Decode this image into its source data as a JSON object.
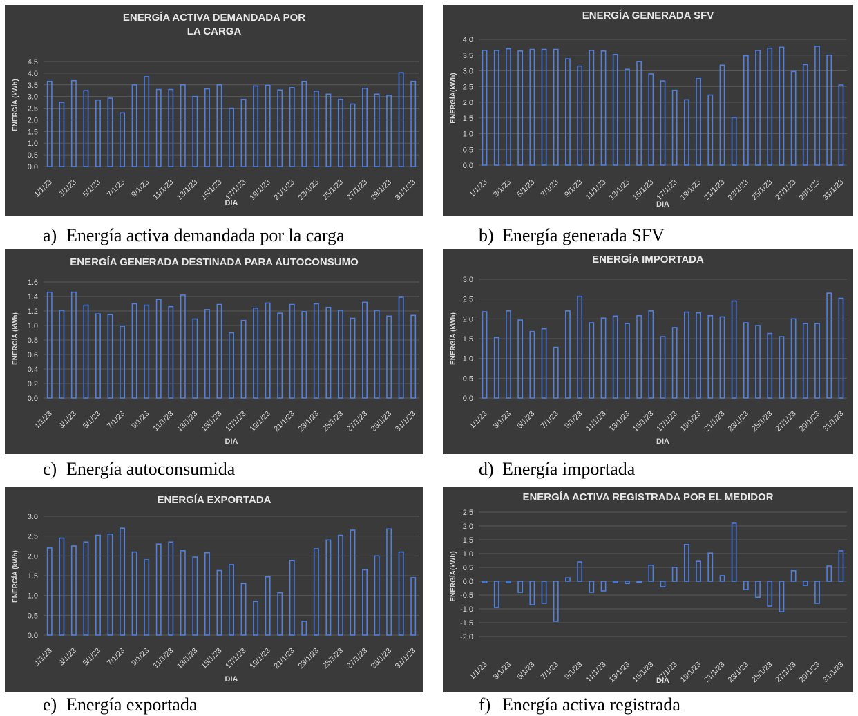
{
  "colors": {
    "background": "#3a3a3a",
    "bar_stroke": "#4f7fe0",
    "grid": "#5a5a5a",
    "text": "#d9d9d9",
    "title": "#e8e8e8"
  },
  "captions": [
    {
      "letter": "a)",
      "text": "Energía activa demandada por la carga"
    },
    {
      "letter": "b)",
      "text": "Energía generada SFV"
    },
    {
      "letter": "c)",
      "text": "Energía autoconsumida"
    },
    {
      "letter": "d)",
      "text": "Energía importada"
    },
    {
      "letter": "e)",
      "text": "Energía exportada"
    },
    {
      "letter": "f)",
      "text": "Energía activa registrada"
    }
  ],
  "chart_data": [
    {
      "type": "bar",
      "title": "ENERGÍA ACTIVA DEMANDADA POR LA CARGA",
      "title_lines": [
        "ENERGÍA ACTIVA DEMANDADA POR",
        "LA CARGA"
      ],
      "xlabel": "DIA",
      "ylabel": "ENERGÍA (kWh)",
      "ylim": [
        0,
        4.5
      ],
      "yticks": [
        "0.0",
        "0.5",
        "1.0",
        "1.5",
        "2.0",
        "2.5",
        "3.0",
        "3.5",
        "4.0",
        "4.5"
      ],
      "grid": true,
      "categories": [
        "1/1/23",
        "2/1/23",
        "3/1/23",
        "4/1/23",
        "5/1/23",
        "6/1/23",
        "7/1/23",
        "8/1/23",
        "9/1/23",
        "10/1/23",
        "11/1/23",
        "12/1/23",
        "13/1/23",
        "14/1/23",
        "15/1/23",
        "16/1/23",
        "17/1/23",
        "18/1/23",
        "19/1/23",
        "20/1/23",
        "21/1/23",
        "22/1/23",
        "23/1/23",
        "24/1/23",
        "25/1/23",
        "26/1/23",
        "27/1/23",
        "28/1/23",
        "29/1/23",
        "30/1/23",
        "31/1/23"
      ],
      "xtick_labels": [
        "1/1/23",
        "3/1/23",
        "5/1/23",
        "7/1/23",
        "9/1/23",
        "11/1/23",
        "13/1/23",
        "15/1/23",
        "17/1/23",
        "19/1/23",
        "21/1/23",
        "23/1/23",
        "25/1/23",
        "27/1/23",
        "29/1/23",
        "31/1/23"
      ],
      "values": [
        3.65,
        2.75,
        3.68,
        3.25,
        2.85,
        2.93,
        2.3,
        3.5,
        3.85,
        3.3,
        3.3,
        3.5,
        3.0,
        3.33,
        3.5,
        2.5,
        2.88,
        3.45,
        3.48,
        3.28,
        3.38,
        3.65,
        3.23,
        3.1,
        2.88,
        2.68,
        3.35,
        3.1,
        3.05,
        4.02,
        3.65
      ]
    },
    {
      "type": "bar",
      "title": "ENERGÍA GENERADA SFV",
      "title_lines": [
        "ENERGÍA GENERADA SFV"
      ],
      "xlabel": "DIA",
      "ylabel": "ENERGÍA(kWh)",
      "ylim": [
        0,
        4.0
      ],
      "yticks": [
        "0.0",
        "0.5",
        "1.0",
        "1.5",
        "2.0",
        "2.5",
        "3.0",
        "3.5",
        "4.0"
      ],
      "grid": true,
      "categories": [
        "1/1/23",
        "2/1/23",
        "3/1/23",
        "4/1/23",
        "5/1/23",
        "6/1/23",
        "7/1/23",
        "8/1/23",
        "9/1/23",
        "10/1/23",
        "11/1/23",
        "12/1/23",
        "13/1/23",
        "14/1/23",
        "15/1/23",
        "16/1/23",
        "17/1/23",
        "18/1/23",
        "19/1/23",
        "20/1/23",
        "21/1/23",
        "22/1/23",
        "23/1/23",
        "24/1/23",
        "25/1/23",
        "26/1/23",
        "27/1/23",
        "28/1/23",
        "29/1/23",
        "30/1/23",
        "31/1/23"
      ],
      "xtick_labels": [
        "1/1/23",
        "3/1/23",
        "5/1/23",
        "7/1/23",
        "9/1/23",
        "11/1/23",
        "13/1/23",
        "15/1/23",
        "17/1/23",
        "19/1/23",
        "21/1/23",
        "23/1/23",
        "25/1/23",
        "27/1/23",
        "29/1/23",
        "31/1/23"
      ],
      "values": [
        3.65,
        3.65,
        3.7,
        3.63,
        3.68,
        3.68,
        3.68,
        3.38,
        3.15,
        3.65,
        3.63,
        3.52,
        3.05,
        3.3,
        2.9,
        2.68,
        2.38,
        2.08,
        2.75,
        2.23,
        3.18,
        1.52,
        3.48,
        3.65,
        3.72,
        3.75,
        2.98,
        3.2,
        3.78,
        3.5,
        2.55
      ]
    },
    {
      "type": "bar",
      "title": "ENERGÍA GENERADA DESTINADA PARA AUTOCONSUMO",
      "title_lines": [
        "ENERGÍA GENERADA DESTINADA PARA AUTOCONSUMO"
      ],
      "xlabel": "DIA",
      "ylabel": "ENERGÍA (kWh)",
      "ylim": [
        0,
        1.6
      ],
      "yticks": [
        "0.0",
        "0.2",
        "0.4",
        "0.6",
        "0.8",
        "1.0",
        "1.2",
        "1.4",
        "1.6"
      ],
      "grid": true,
      "categories": [
        "1/1/23",
        "2/1/23",
        "3/1/23",
        "4/1/23",
        "5/1/23",
        "6/1/23",
        "7/1/23",
        "8/1/23",
        "9/1/23",
        "10/1/23",
        "11/1/23",
        "12/1/23",
        "13/1/23",
        "14/1/23",
        "15/1/23",
        "16/1/23",
        "17/1/23",
        "18/1/23",
        "19/1/23",
        "20/1/23",
        "21/1/23",
        "22/1/23",
        "23/1/23",
        "24/1/23",
        "25/1/23",
        "26/1/23",
        "27/1/23",
        "28/1/23",
        "29/1/23",
        "30/1/23",
        "31/1/23"
      ],
      "xtick_labels": [
        "1/1/23",
        "3/1/23",
        "5/1/23",
        "7/1/23",
        "9/1/23",
        "11/1/23",
        "13/1/23",
        "15/1/23",
        "17/1/23",
        "19/1/23",
        "21/1/23",
        "23/1/23",
        "25/1/23",
        "27/1/23",
        "29/1/23",
        "31/1/23"
      ],
      "values": [
        1.46,
        1.21,
        1.46,
        1.28,
        1.16,
        1.15,
        0.99,
        1.3,
        1.28,
        1.36,
        1.26,
        1.42,
        1.09,
        1.22,
        1.29,
        0.9,
        1.07,
        1.24,
        1.31,
        1.17,
        1.29,
        1.19,
        1.3,
        1.25,
        1.21,
        1.1,
        1.32,
        1.21,
        1.13,
        1.39,
        1.14
      ]
    },
    {
      "type": "bar",
      "title": "ENERGÍA IMPORTADA",
      "title_lines": [
        "ENERGÍA IMPORTADA"
      ],
      "xlabel": "DIA",
      "ylabel": "ENERGÍA (kWh)",
      "ylim": [
        0,
        3.0
      ],
      "yticks": [
        "0.0",
        "0.5",
        "1.0",
        "1.5",
        "2.0",
        "2.5",
        "3.0"
      ],
      "grid": true,
      "categories": [
        "1/1/23",
        "2/1/23",
        "3/1/23",
        "4/1/23",
        "5/1/23",
        "6/1/23",
        "7/1/23",
        "8/1/23",
        "9/1/23",
        "10/1/23",
        "11/1/23",
        "12/1/23",
        "13/1/23",
        "14/1/23",
        "15/1/23",
        "16/1/23",
        "17/1/23",
        "18/1/23",
        "19/1/23",
        "20/1/23",
        "21/1/23",
        "22/1/23",
        "23/1/23",
        "24/1/23",
        "25/1/23",
        "26/1/23",
        "27/1/23",
        "28/1/23",
        "29/1/23",
        "30/1/23",
        "31/1/23"
      ],
      "xtick_labels": [
        "1/1/23",
        "3/1/23",
        "5/1/23",
        "7/1/23",
        "9/1/23",
        "11/1/23",
        "13/1/23",
        "15/1/23",
        "17/1/23",
        "19/1/23",
        "21/1/23",
        "23/1/23",
        "25/1/23",
        "27/1/23",
        "29/1/23",
        "31/1/23"
      ],
      "values": [
        2.18,
        1.53,
        2.2,
        1.97,
        1.68,
        1.75,
        1.28,
        2.2,
        2.57,
        1.9,
        2.02,
        2.07,
        1.88,
        2.08,
        2.2,
        1.55,
        1.78,
        2.17,
        2.15,
        2.08,
        2.05,
        2.45,
        1.9,
        1.83,
        1.63,
        1.55,
        2.0,
        1.88,
        1.88,
        2.65,
        2.52
      ]
    },
    {
      "type": "bar",
      "title": "ENERGÍA EXPORTADA",
      "title_lines": [
        "ENERGÍA EXPORTADA"
      ],
      "xlabel": "DIA",
      "ylabel": "ENERGÍA (kWh)",
      "ylim": [
        0,
        3.0
      ],
      "yticks": [
        "0.0",
        "0.5",
        "1.0",
        "1.5",
        "2.0",
        "2.5",
        "3.0"
      ],
      "grid": true,
      "categories": [
        "1/1/23",
        "2/1/23",
        "3/1/23",
        "4/1/23",
        "5/1/23",
        "6/1/23",
        "7/1/23",
        "8/1/23",
        "9/1/23",
        "10/1/23",
        "11/1/23",
        "12/1/23",
        "13/1/23",
        "14/1/23",
        "15/1/23",
        "16/1/23",
        "17/1/23",
        "18/1/23",
        "19/1/23",
        "20/1/23",
        "21/1/23",
        "22/1/23",
        "23/1/23",
        "24/1/23",
        "25/1/23",
        "26/1/23",
        "27/1/23",
        "28/1/23",
        "29/1/23",
        "30/1/23",
        "31/1/23"
      ],
      "xtick_labels": [
        "1/1/23",
        "3/1/23",
        "5/1/23",
        "7/1/23",
        "9/1/23",
        "11/1/23",
        "13/1/23",
        "15/1/23",
        "17/1/23",
        "19/1/23",
        "21/1/23",
        "23/1/23",
        "25/1/23",
        "27/1/23",
        "29/1/23",
        "31/1/23"
      ],
      "values": [
        2.2,
        2.45,
        2.25,
        2.35,
        2.52,
        2.55,
        2.7,
        2.1,
        1.9,
        2.3,
        2.35,
        2.13,
        1.97,
        2.08,
        1.63,
        1.78,
        1.3,
        0.85,
        1.47,
        1.07,
        1.88,
        0.35,
        2.18,
        2.4,
        2.52,
        2.65,
        1.65,
        2.0,
        2.68,
        2.1,
        1.45
      ]
    },
    {
      "type": "bar",
      "title": "ENERGÍA ACTIVA REGISTRADA POR EL MEDIDOR",
      "title_lines": [
        "ENERGÍA ACTIVA REGISTRADA POR EL MEDIDOR"
      ],
      "xlabel": "DIA",
      "ylabel": "ENERGÍA(kWh)",
      "ylim": [
        -2.0,
        2.5
      ],
      "yticks": [
        "-2.0",
        "-1.5",
        "-1.0",
        "-0.5",
        "0.0",
        "0.5",
        "1.0",
        "1.5",
        "2.0",
        "2.5"
      ],
      "grid": true,
      "categories": [
        "1/1/23",
        "2/1/23",
        "3/1/23",
        "4/1/23",
        "5/1/23",
        "6/1/23",
        "7/1/23",
        "8/1/23",
        "9/1/23",
        "10/1/23",
        "11/1/23",
        "12/1/23",
        "13/1/23",
        "14/1/23",
        "15/1/23",
        "16/1/23",
        "17/1/23",
        "18/1/23",
        "19/1/23",
        "20/1/23",
        "21/1/23",
        "22/1/23",
        "23/1/23",
        "24/1/23",
        "25/1/23",
        "26/1/23",
        "27/1/23",
        "28/1/23",
        "29/1/23",
        "30/1/23",
        "31/1/23"
      ],
      "xtick_labels": [
        "1/1/23",
        "3/1/23",
        "5/1/23",
        "7/1/23",
        "9/1/23",
        "11/1/23",
        "13/1/23",
        "15/1/23",
        "17/1/23",
        "19/1/23",
        "21/1/23",
        "23/1/23",
        "25/1/23",
        "27/1/23",
        "29/1/23",
        "31/1/23"
      ],
      "values": [
        -0.05,
        -0.95,
        -0.05,
        -0.4,
        -0.85,
        -0.8,
        -1.45,
        0.12,
        0.7,
        -0.4,
        -0.35,
        -0.05,
        -0.08,
        -0.04,
        0.58,
        -0.2,
        0.5,
        1.33,
        0.72,
        1.02,
        0.2,
        2.1,
        -0.3,
        -0.58,
        -0.9,
        -1.1,
        0.38,
        -0.15,
        -0.8,
        0.55,
        1.1
      ]
    }
  ]
}
